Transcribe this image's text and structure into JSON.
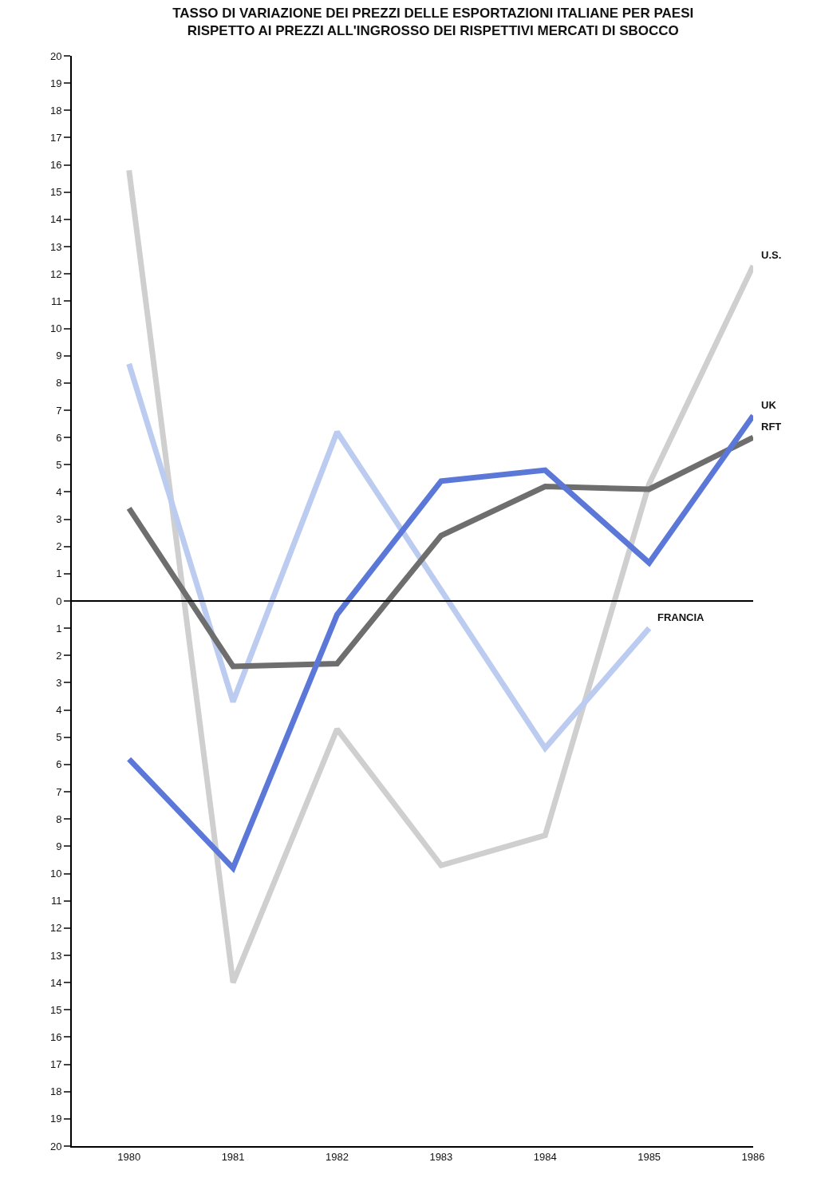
{
  "chart_data": {
    "type": "line",
    "title": "TASSO DI VARIAZIONE DEI PREZZI DELLE ESPORTAZIONI ITALIANE PER PAESI\nRISPETTO AI PREZZI ALL'INGROSSO DEI RISPETTIVI MERCATI DI SBOCCO",
    "categories": [
      "1980",
      "1981",
      "1982",
      "1983",
      "1984",
      "1985",
      "1986"
    ],
    "series": [
      {
        "name": "U.S.",
        "color": "#cfcfcf",
        "values": [
          15.8,
          -14.0,
          -4.7,
          -9.7,
          -8.6,
          4.3,
          12.3
        ]
      },
      {
        "name": "FRANCIA",
        "color": "#bccbf0",
        "values": [
          8.7,
          -3.7,
          6.2,
          0.4,
          -5.4,
          -1.0,
          null
        ]
      },
      {
        "name": "RFT",
        "color": "#6e6e6e",
        "values": [
          3.4,
          -2.4,
          -2.3,
          2.4,
          4.2,
          4.1,
          6.0
        ]
      },
      {
        "name": "UK",
        "color": "#5b78d8",
        "values": [
          -5.8,
          -9.8,
          -0.5,
          4.4,
          4.8,
          1.4,
          6.8
        ]
      }
    ],
    "ylim": [
      -20,
      20
    ],
    "yticks": [
      {
        "value": -20,
        "label": "20"
      },
      {
        "value": -19,
        "label": "19"
      },
      {
        "value": -18,
        "label": "18"
      },
      {
        "value": -17,
        "label": "17"
      },
      {
        "value": -16,
        "label": "16"
      },
      {
        "value": -15,
        "label": "15"
      },
      {
        "value": -14,
        "label": "14"
      },
      {
        "value": -13,
        "label": "13"
      },
      {
        "value": -12,
        "label": "12"
      },
      {
        "value": -11,
        "label": "11"
      },
      {
        "value": -10,
        "label": "10"
      },
      {
        "value": -9,
        "label": "9"
      },
      {
        "value": -8,
        "label": "8"
      },
      {
        "value": -7,
        "label": "7"
      },
      {
        "value": -6,
        "label": "6"
      },
      {
        "value": -5,
        "label": "5"
      },
      {
        "value": -4,
        "label": "4"
      },
      {
        "value": -3,
        "label": "3"
      },
      {
        "value": -2,
        "label": "2"
      },
      {
        "value": -1,
        "label": "1"
      },
      0,
      1,
      2,
      3,
      4,
      5,
      6,
      7,
      8,
      9,
      10,
      11,
      12,
      13,
      14,
      15,
      16,
      17,
      18,
      19,
      20
    ],
    "ref_lines": [
      {
        "axis": "y",
        "value": 0,
        "label": null,
        "color": "#000000"
      }
    ],
    "legend": false,
    "marker": "none",
    "line_style": "solid"
  }
}
